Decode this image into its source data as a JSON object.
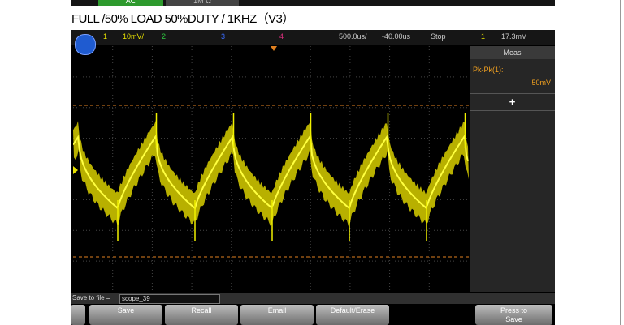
{
  "top_strip": {
    "buttons": [
      "AC",
      "1M Ω"
    ]
  },
  "caption": "FULL /50% LOAD 50%DUTY / 1KHZ（V3）",
  "scope": {
    "status": {
      "ch1": "1",
      "ch1_scale": "10mV/",
      "ch2": "2",
      "ch3": "3",
      "ch4": "4",
      "timebase": "500.0us/",
      "delay": "-40.00us",
      "run_state": "Stop",
      "trigger_source": "1",
      "trigger_level": "17.3mV"
    },
    "meas_panel": {
      "title": "Meas",
      "label": "Pk-Pk(1):",
      "value": "50mV",
      "add": "+"
    },
    "save_bar": {
      "label": "Save to file =",
      "filename": "scope_39"
    },
    "softkeys": [
      "Save",
      "Recall",
      "Email",
      "Default/Erase",
      "Press to Save"
    ]
  }
}
